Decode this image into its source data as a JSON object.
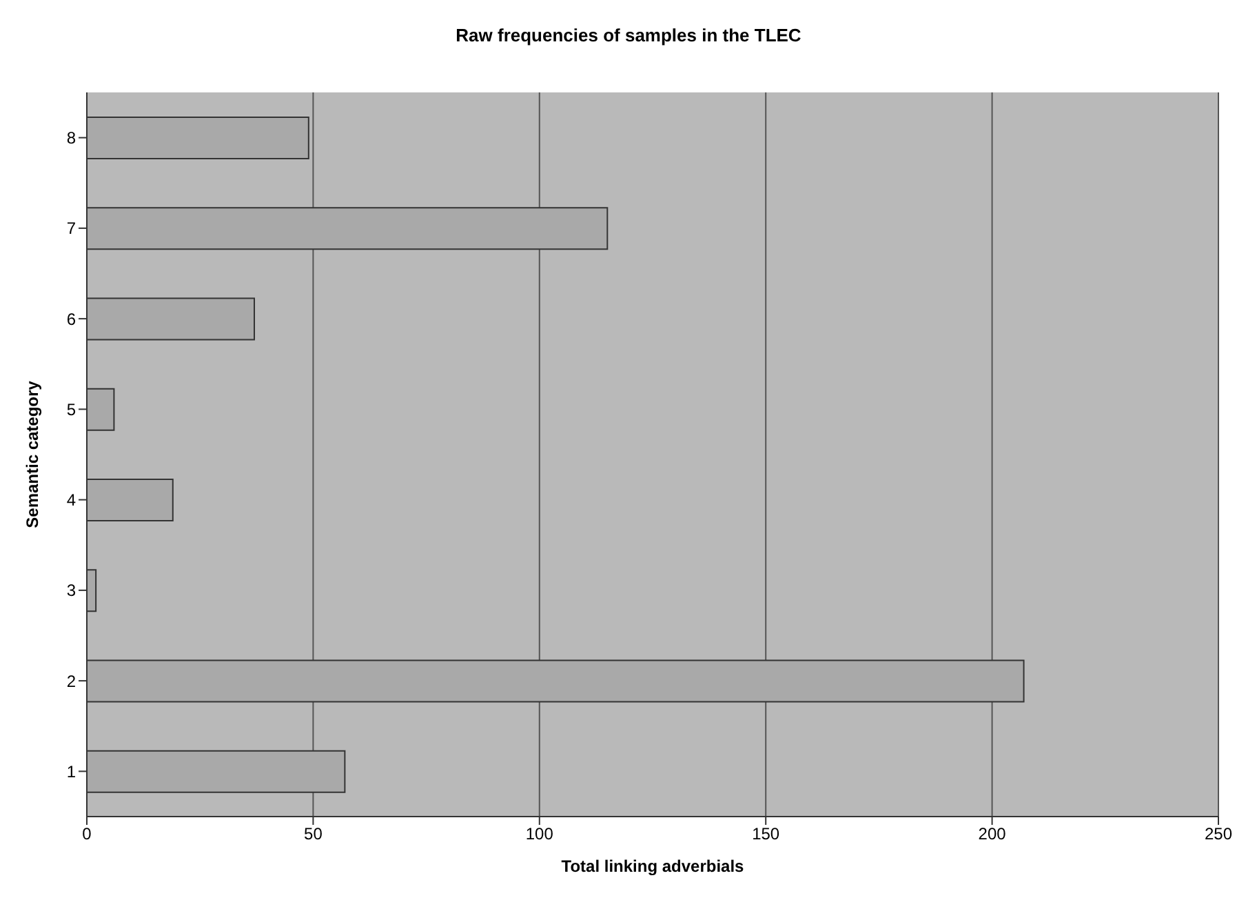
{
  "chart_data": {
    "type": "bar",
    "orientation": "horizontal",
    "title": "Raw frequencies of samples in the TLEC",
    "xlabel": "Total linking adverbials",
    "ylabel": "Semantic category",
    "categories": [
      "8",
      "7",
      "6",
      "5",
      "4",
      "3",
      "2",
      "1"
    ],
    "values": [
      49,
      115,
      37,
      6,
      19,
      2,
      207,
      57
    ],
    "color": "#a9a9a9",
    "xlim": [
      0,
      250
    ],
    "xticks": [
      0,
      50,
      100,
      150,
      200,
      250
    ],
    "grid": "x"
  }
}
